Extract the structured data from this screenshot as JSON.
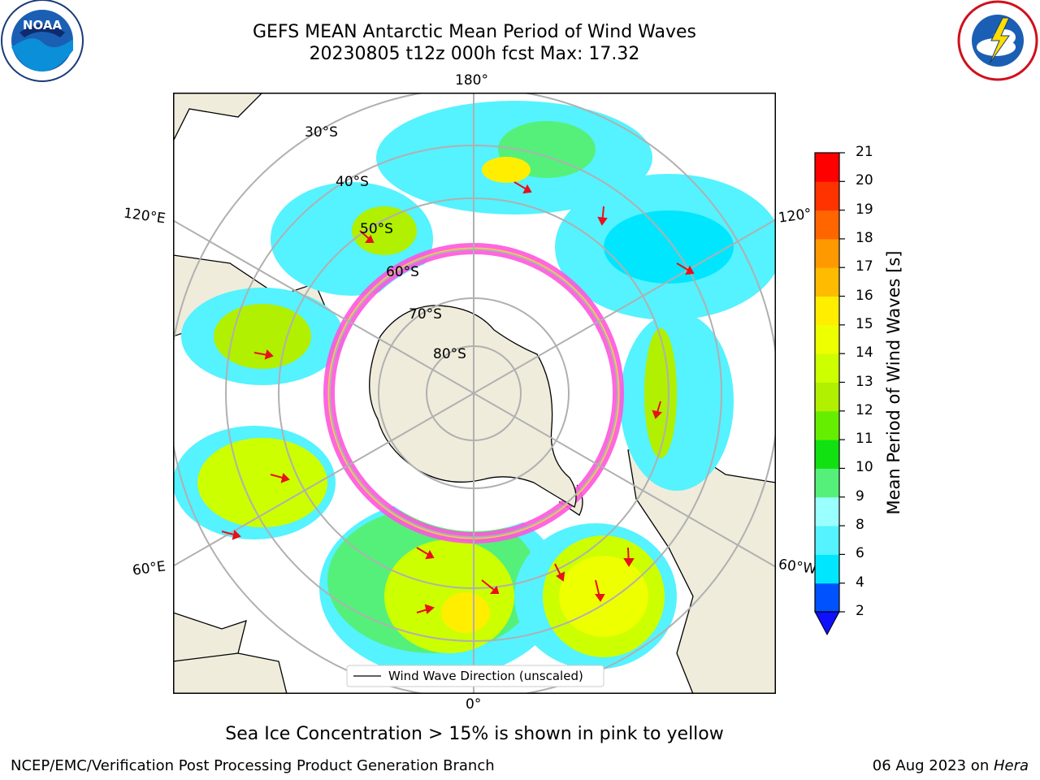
{
  "title": {
    "line1": "GEFS MEAN Antarctic Mean Period of Wind Waves",
    "line2": "20230805 t12z 000h fcst   Max: 17.32"
  },
  "logos": {
    "left": "noaa-logo",
    "left_text": "NOAA",
    "right": "nws-logo",
    "right_text": "NATIONAL WEATHER SERVICE"
  },
  "map": {
    "projection": "south-polar-stereographic",
    "lon_labels": {
      "top": "180°",
      "bottom": "0°",
      "left_upper": "120°E",
      "left_lower": "60°E",
      "right_upper": "120°",
      "right_lower": "60°W"
    },
    "lat_labels": [
      "30°S",
      "40°S",
      "50°S",
      "60°S",
      "70°S",
      "80°S"
    ],
    "legend": "Wind Wave Direction (unscaled)",
    "arrow_color": "#e8101a",
    "land_color": "#efecdc",
    "ice_color": "#ff55dd"
  },
  "colorbar": {
    "label": "Mean Period of Wind Waves [s]",
    "ticks": [
      "2",
      "4",
      "6",
      "8",
      "9",
      "10",
      "11",
      "12",
      "13",
      "14",
      "15",
      "16",
      "17",
      "18",
      "19",
      "20",
      "21"
    ],
    "colors": [
      "#0052ff",
      "#00e6ff",
      "#55f2ff",
      "#99ffff",
      "#55f07a",
      "#11e011",
      "#66ee00",
      "#b0f000",
      "#ccff00",
      "#eeff00",
      "#ffee00",
      "#ffbb00",
      "#ff9900",
      "#ff6600",
      "#ff3300",
      "#ff0000"
    ],
    "under_color": "#1010ff"
  },
  "caption": "Sea Ice Concentration > 15% is shown in pink to yellow",
  "footer": {
    "left": "NCEP/EMC/Verification Post Processing Product Generation Branch",
    "right_date": "06 Aug 2023 on ",
    "right_host": "Hera"
  }
}
